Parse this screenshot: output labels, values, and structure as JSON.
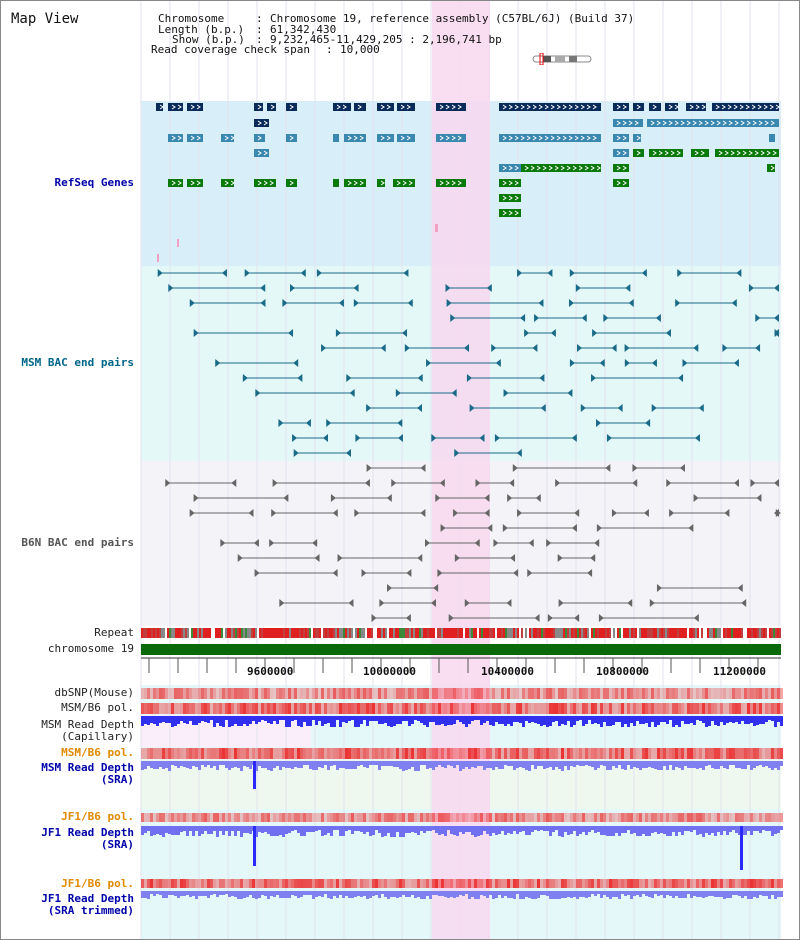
{
  "title": "Map View",
  "header": {
    "chromosome_key": "Chromosome",
    "chromosome_val": "Chromosome 19, reference assembly (C57BL/6J) (Build 37)",
    "length_key": "Length (b.p.)",
    "length_val": "61,342,430",
    "show_key": "Show (b.p.)",
    "show_val": "9,232,465-11,429,205 : 2,196,741 bp",
    "coverage_key": "Read coverage check span",
    "coverage_val": "10,000"
  },
  "tracks": {
    "refseq": "RefSeq Genes",
    "msm_bac": "MSM BAC end pairs",
    "b6n_bac": "B6N BAC end pairs",
    "repeat": "Repeat",
    "chromosome": "chromosome 19",
    "dbsnp": "dbSNP(Mouse)",
    "msm_b6_pol1": "MSM/B6 pol.",
    "msm_depth_cap_1": "MSM Read Depth",
    "msm_depth_cap_2": "(Capillary)",
    "msm_b6_pol2": "MSM/B6 pol.",
    "msm_depth_sra_1": "MSM Read Depth",
    "msm_depth_sra_2": "(SRA)",
    "jf1_b6_pol1": "JF1/B6 pol.",
    "jf1_depth_sra_1": "JF1 Read Depth",
    "jf1_depth_sra_2": "(SRA)",
    "jf1_b6_pol2": "JF1/B6 pol.",
    "jf1_depth_trim_1": "JF1 Read Depth",
    "jf1_depth_trim_2": "(SRA trimmed)"
  },
  "axis": {
    "ticks": [
      "9600000",
      "10000000",
      "10400000",
      "10800000",
      "11200000"
    ]
  },
  "colors": {
    "refseq_bg": "#d8eef8",
    "bac_bg": "#e4f8f8",
    "highlight": "#f8d8f0",
    "gene_dark": "#0a2a5a",
    "gene_mid": "#3a88b0",
    "gene_green": "#0a7a0a",
    "msm_bac_line": "#1a6a88",
    "b6n_bac_line": "#666666",
    "chromosome_bar": "#0a6a0a",
    "label_blue": "#0000aa",
    "label_teal": "#006688",
    "label_orange": "#e08800",
    "depth_blue": "#2a2aff"
  }
}
